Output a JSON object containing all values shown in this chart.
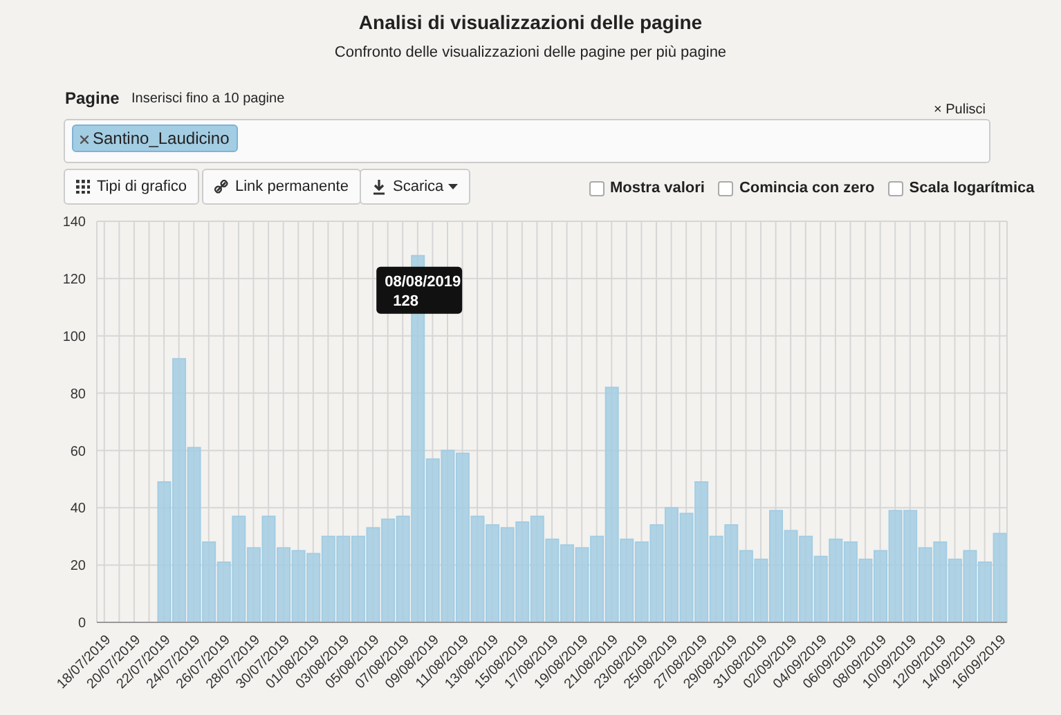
{
  "chart_data": {
    "type": "bar",
    "title": "Analisi di visualizzazioni delle pagine",
    "subtitle": "Confronto delle visualizzazioni delle pagine per più pagine",
    "categories": [
      "18/07/2019",
      null,
      "20/07/2019",
      null,
      "22/07/2019",
      null,
      "24/07/2019",
      null,
      "26/07/2019",
      null,
      "28/07/2019",
      null,
      "30/07/2019",
      null,
      "01/08/2019",
      null,
      "03/08/2019",
      null,
      "05/08/2019",
      null,
      "07/08/2019",
      null,
      "09/08/2019",
      null,
      "11/08/2019",
      null,
      "13/08/2019",
      null,
      "15/08/2019",
      null,
      "17/08/2019",
      null,
      "19/08/2019",
      null,
      "21/08/2019",
      null,
      "23/08/2019",
      null,
      "25/08/2019",
      null,
      "27/08/2019",
      null,
      "29/08/2019",
      null,
      "31/08/2019",
      null,
      "02/09/2019",
      null,
      "04/09/2019",
      null,
      "06/09/2019",
      null,
      "08/09/2019",
      null,
      "10/09/2019",
      null,
      "12/09/2019",
      null,
      "14/09/2019",
      null,
      "16/09/2019"
    ],
    "series": [
      {
        "name": "Santino_Laudicino",
        "color": "#a3cde3",
        "values": [
          0,
          0,
          0,
          0,
          49,
          92,
          61,
          28,
          21,
          37,
          26,
          37,
          26,
          25,
          24,
          30,
          30,
          30,
          33,
          36,
          37,
          128,
          57,
          60,
          59,
          37,
          34,
          33,
          35,
          37,
          29,
          27,
          26,
          30,
          82,
          29,
          28,
          34,
          40,
          38,
          49,
          30,
          34,
          25,
          22,
          39,
          32,
          30,
          23,
          29,
          28,
          22,
          25,
          39,
          39,
          26,
          28,
          22,
          25,
          21,
          31
        ]
      }
    ],
    "ylim": [
      0,
      140
    ],
    "yticks": [
      0,
      20,
      40,
      60,
      80,
      100,
      120,
      140
    ],
    "grid": true,
    "legend": "top left",
    "annotations": [
      "08/08/2019",
      "128",
      "Pagine",
      "Inserisci fino a 10 pagine",
      "× Pulisci",
      "Tipi di grafico",
      "Link permanente",
      "Scarica",
      "Mostra valori",
      "Comincia con zero",
      "Scala logarítmica"
    ]
  }
}
